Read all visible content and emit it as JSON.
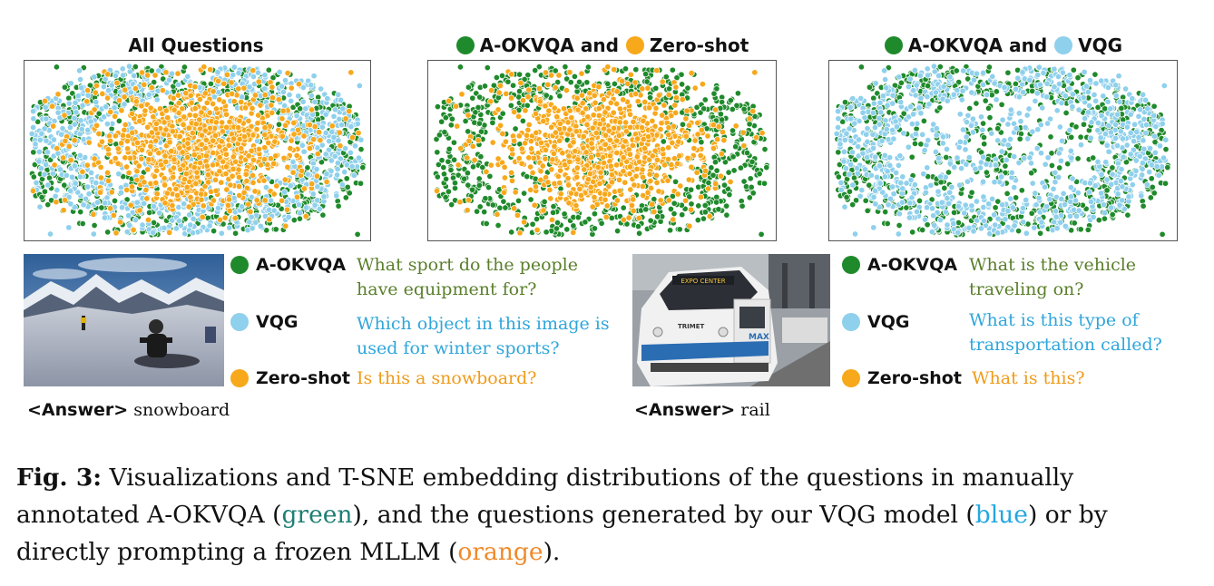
{
  "colors": {
    "green": "#1f8a2b",
    "blue": "#8fd0ec",
    "orange": "#f7a81b",
    "qgreen": "#5a7f2b",
    "qblue": "#2fa6db",
    "qorange": "#ef9b1a",
    "cap_green": "#1e7f74",
    "cap_blue": "#23a7e0",
    "cap_orange": "#f08a2a"
  },
  "plots": [
    {
      "title_parts": [
        "All Questions"
      ],
      "title_dots": []
    },
    {
      "title_parts": [
        "A-OKVQA and",
        "Zero-shot"
      ],
      "title_dots": [
        "green",
        "orange"
      ]
    },
    {
      "title_parts": [
        "A-OKVQA and",
        "VQG"
      ],
      "title_dots": [
        "green",
        "blue"
      ]
    }
  ],
  "examples": [
    {
      "legend": [
        "A-OKVQA",
        "VQG",
        "Zero-shot"
      ],
      "questions": [
        "What sport do the people\nhave equipment for?",
        "Which object in this image is\nused for winter sports?",
        "Is this a snowboard?"
      ],
      "answer_label": "<Answer>",
      "answer": "snowboard"
    },
    {
      "legend": [
        "A-OKVQA",
        "VQG",
        "Zero-shot"
      ],
      "questions": [
        "What is the vehicle\ntraveling on?",
        "What is this type of\ntransportation called?",
        "What is this?"
      ],
      "answer_label": "<Answer>",
      "answer": "rail",
      "train_sign": "EXPO CENTER",
      "train_brand": "MAX",
      "train_logo": "TRIMET"
    }
  ],
  "caption": {
    "label": "Fig. 3:",
    "text_1": " Visualizations and T-SNE embedding distributions of the questions in manually annotated A-OKVQA (",
    "green_word": "green",
    "text_2": "), and the questions generated by our VQG model (",
    "blue_word": "blue",
    "text_3": ") or by directly prompting a frozen MLLM (",
    "orange_word": "orange",
    "text_4": ")."
  }
}
